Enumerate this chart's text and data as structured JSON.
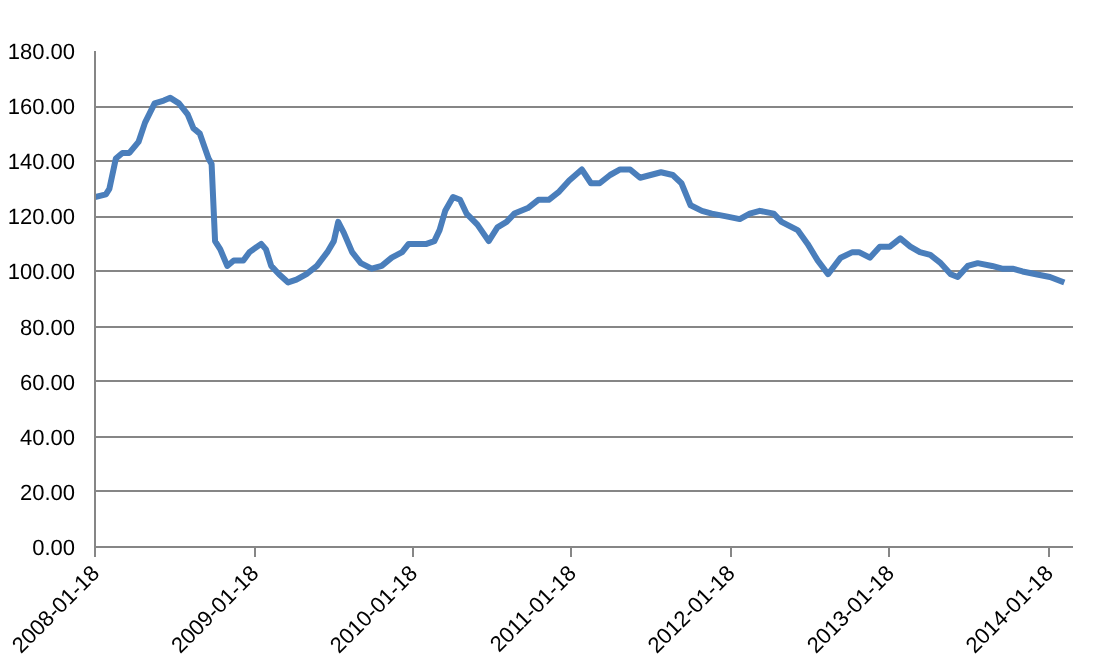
{
  "chart_data": {
    "type": "line",
    "x": [
      "2008-01-18",
      "2008-02-12",
      "2008-02-20",
      "2008-03-06",
      "2008-03-21",
      "2008-04-06",
      "2008-04-27",
      "2008-05-12",
      "2008-06-03",
      "2008-06-24",
      "2008-07-09",
      "2008-07-29",
      "2008-08-18",
      "2008-08-31",
      "2008-09-15",
      "2008-10-05",
      "2008-10-12",
      "2008-10-20",
      "2008-11-01",
      "2008-11-17",
      "2008-12-02",
      "2008-12-24",
      "2009-01-07",
      "2009-02-03",
      "2009-02-14",
      "2009-02-26",
      "2009-03-16",
      "2009-04-06",
      "2009-04-25",
      "2009-05-18",
      "2009-06-11",
      "2009-07-05",
      "2009-07-20",
      "2009-07-30",
      "2009-08-12",
      "2009-08-31",
      "2009-09-20",
      "2009-10-15",
      "2009-11-07",
      "2009-11-30",
      "2009-12-24",
      "2010-01-08",
      "2010-01-30",
      "2010-02-18",
      "2010-03-08",
      "2010-03-20",
      "2010-04-02",
      "2010-04-20",
      "2010-05-06",
      "2010-05-21",
      "2010-06-15",
      "2010-07-11",
      "2010-07-31",
      "2010-08-21",
      "2010-09-08",
      "2010-10-09",
      "2010-11-02",
      "2010-11-26",
      "2010-12-20",
      "2011-01-12",
      "2011-02-10",
      "2011-03-03",
      "2011-03-23",
      "2011-04-16",
      "2011-05-09",
      "2011-06-01",
      "2011-06-24",
      "2011-07-18",
      "2011-08-11",
      "2011-09-07",
      "2011-09-27",
      "2011-10-18",
      "2011-11-13",
      "2011-12-06",
      "2012-01-08",
      "2012-02-08",
      "2012-03-02",
      "2012-03-25",
      "2012-04-26",
      "2012-05-14",
      "2012-06-20",
      "2012-07-13",
      "2012-08-05",
      "2012-08-29",
      "2012-09-27",
      "2012-10-24",
      "2012-11-08",
      "2012-12-03",
      "2012-12-26",
      "2013-01-18",
      "2013-02-11",
      "2013-03-06",
      "2013-03-28",
      "2013-04-21",
      "2013-05-15",
      "2013-06-07",
      "2013-06-23",
      "2013-07-16",
      "2013-08-08",
      "2013-09-10",
      "2013-10-03",
      "2013-10-27",
      "2013-11-19",
      "2013-12-20",
      "2014-01-21",
      "2014-02-23"
    ],
    "series": [
      {
        "color": "#4a7ebb",
        "values": [
          127,
          128,
          130,
          141,
          143,
          143,
          147,
          154,
          161,
          162,
          163,
          161,
          157,
          152,
          150,
          141,
          139,
          111,
          108,
          102,
          104,
          104,
          107,
          110,
          108,
          102,
          99,
          96,
          97,
          99,
          102,
          107,
          111,
          118,
          114,
          107,
          103,
          101,
          102,
          105,
          107,
          110,
          110,
          110,
          111,
          115,
          122,
          127,
          126,
          121,
          117,
          111,
          116,
          118,
          121,
          123,
          126,
          126,
          129,
          133,
          137,
          132,
          132,
          135,
          137,
          137,
          134,
          135,
          136,
          135,
          132,
          124,
          122,
          121,
          120,
          119,
          121,
          122,
          121,
          118,
          115,
          110,
          104,
          99,
          105,
          107,
          107,
          105,
          109,
          109,
          112,
          109,
          107,
          106,
          103,
          99,
          98,
          102,
          103,
          102,
          101,
          101,
          100,
          99,
          98,
          96
        ]
      }
    ],
    "xlim": [
      "2008-01-18",
      "2014-03-15"
    ],
    "xticks": [
      "2008-01-18",
      "2009-01-18",
      "2010-01-18",
      "2011-01-18",
      "2012-01-18",
      "2013-01-18",
      "2014-01-18"
    ],
    "ylim": [
      0,
      180
    ],
    "yticks": [
      {
        "value": 0,
        "label": "0.00"
      },
      {
        "value": 20,
        "label": "20.00"
      },
      {
        "value": 40,
        "label": "40.00"
      },
      {
        "value": 60,
        "label": "60.00"
      },
      {
        "value": 80,
        "label": "80.00"
      },
      {
        "value": 100,
        "label": "100.00"
      },
      {
        "value": 120,
        "label": "120.00"
      },
      {
        "value": 140,
        "label": "140.00"
      },
      {
        "value": 160,
        "label": "160.00"
      },
      {
        "value": 180,
        "label": "180.00"
      }
    ],
    "grid": "y",
    "line_style": "solid",
    "marker": "none"
  }
}
